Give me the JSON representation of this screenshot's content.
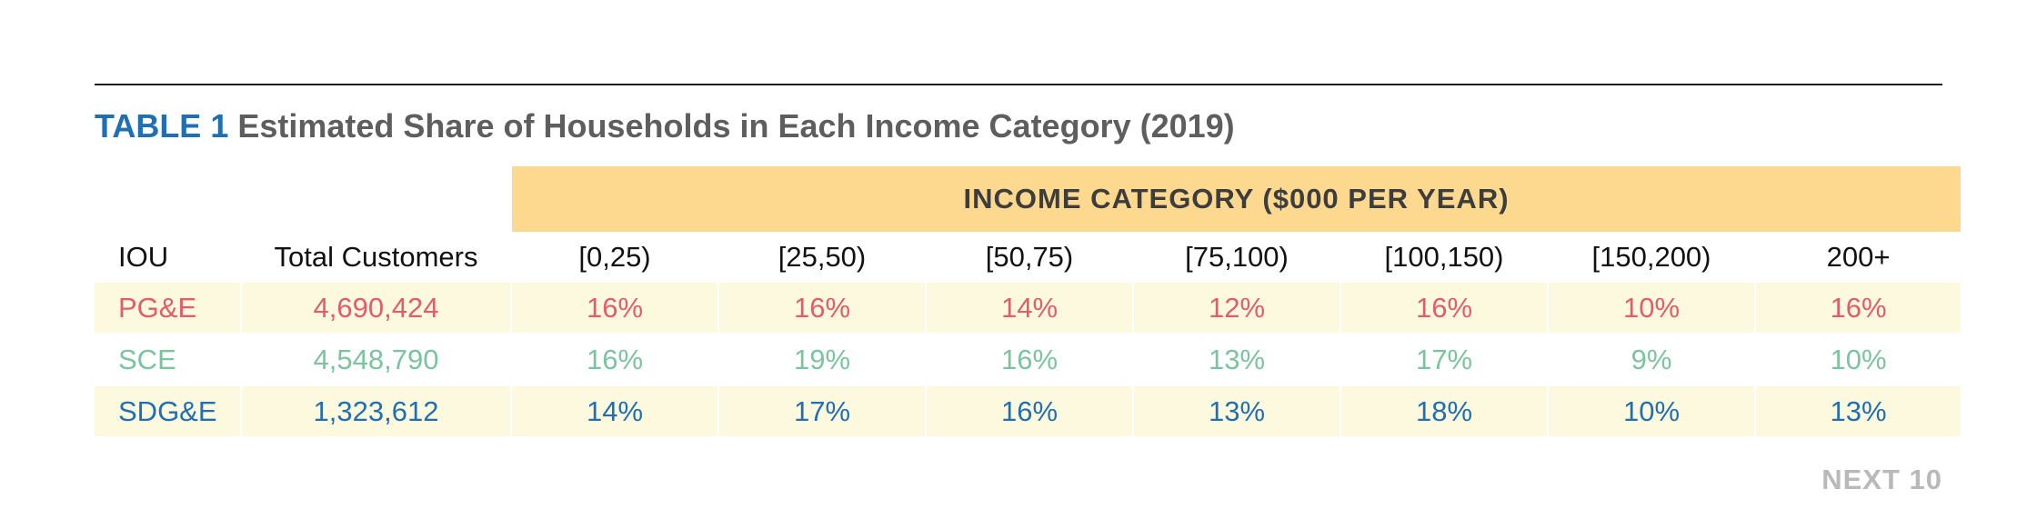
{
  "title": {
    "label": "TABLE 1",
    "text": "Estimated Share of Households in Each Income Category (2019)"
  },
  "brand": "NEXT 10",
  "colors": {
    "pge": "#e25d6c",
    "sce": "#7bc4a0",
    "sdge": "#1f6fb2",
    "band": "#fcd98f",
    "row_shade": "#fdf9de"
  },
  "chart_data": {
    "type": "table",
    "title": "TABLE 1 Estimated Share of Households in Each Income Category (2019)",
    "group_header": "INCOME CATEGORY ($000 PER YEAR)",
    "columns": [
      "IOU",
      "Total Customers",
      "[0,25)",
      "[25,50)",
      "[50,75)",
      "[75,100)",
      "[100,150)",
      "[150,200)",
      "200+"
    ],
    "rows": [
      {
        "iou": "PG&E",
        "customers": "4,690,424",
        "shares": [
          "16%",
          "16%",
          "14%",
          "12%",
          "16%",
          "10%",
          "16%"
        ]
      },
      {
        "iou": "SCE",
        "customers": "4,548,790",
        "shares": [
          "16%",
          "19%",
          "16%",
          "13%",
          "17%",
          "9%",
          "10%"
        ]
      },
      {
        "iou": "SDG&E",
        "customers": "1,323,612",
        "shares": [
          "14%",
          "17%",
          "16%",
          "13%",
          "18%",
          "10%",
          "13%"
        ]
      }
    ]
  }
}
